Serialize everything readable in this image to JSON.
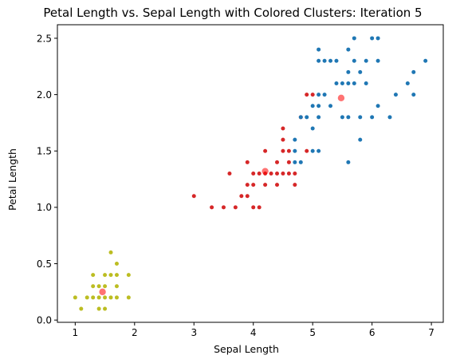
{
  "chart_data": {
    "type": "scatter",
    "title": "Petal Length vs. Sepal Length with Colored Clusters: Iteration 5",
    "xlabel": "Sepal Length",
    "ylabel": "Petal Length",
    "xlim": [
      0.7,
      7.2
    ],
    "ylim": [
      -0.02,
      2.62
    ],
    "xticks": [
      1,
      2,
      3,
      4,
      5,
      6,
      7
    ],
    "yticks": [
      0.0,
      0.5,
      1.0,
      1.5,
      2.0,
      2.5
    ],
    "xtick_labels": [
      "1",
      "2",
      "3",
      "4",
      "5",
      "6",
      "7"
    ],
    "ytick_labels": [
      "0.0",
      "0.5",
      "1.0",
      "1.5",
      "2.0",
      "2.5"
    ],
    "grid": false,
    "series": [
      {
        "color": "#bcbd22",
        "points": [
          [
            1.0,
            0.2
          ],
          [
            1.1,
            0.1
          ],
          [
            1.2,
            0.2
          ],
          [
            1.3,
            0.2
          ],
          [
            1.3,
            0.3
          ],
          [
            1.3,
            0.4
          ],
          [
            1.4,
            0.1
          ],
          [
            1.4,
            0.2
          ],
          [
            1.4,
            0.3
          ],
          [
            1.5,
            0.1
          ],
          [
            1.5,
            0.2
          ],
          [
            1.5,
            0.3
          ],
          [
            1.5,
            0.4
          ],
          [
            1.6,
            0.2
          ],
          [
            1.6,
            0.4
          ],
          [
            1.6,
            0.6
          ],
          [
            1.7,
            0.2
          ],
          [
            1.7,
            0.3
          ],
          [
            1.7,
            0.4
          ],
          [
            1.7,
            0.5
          ],
          [
            1.9,
            0.2
          ],
          [
            1.9,
            0.4
          ]
        ]
      },
      {
        "color": "#d62728",
        "points": [
          [
            3.0,
            1.1
          ],
          [
            3.3,
            1.0
          ],
          [
            3.5,
            1.0
          ],
          [
            3.6,
            1.3
          ],
          [
            3.7,
            1.0
          ],
          [
            3.8,
            1.1
          ],
          [
            3.9,
            1.1
          ],
          [
            3.9,
            1.2
          ],
          [
            3.9,
            1.4
          ],
          [
            4.0,
            1.0
          ],
          [
            4.0,
            1.2
          ],
          [
            4.0,
            1.3
          ],
          [
            4.1,
            1.0
          ],
          [
            4.1,
            1.3
          ],
          [
            4.2,
            1.2
          ],
          [
            4.2,
            1.3
          ],
          [
            4.2,
            1.5
          ],
          [
            4.3,
            1.3
          ],
          [
            4.4,
            1.2
          ],
          [
            4.4,
            1.3
          ],
          [
            4.4,
            1.4
          ],
          [
            4.5,
            1.3
          ],
          [
            4.5,
            1.5
          ],
          [
            4.5,
            1.6
          ],
          [
            4.5,
            1.7
          ],
          [
            4.6,
            1.3
          ],
          [
            4.6,
            1.4
          ],
          [
            4.6,
            1.5
          ],
          [
            4.7,
            1.2
          ],
          [
            4.7,
            1.3
          ],
          [
            4.8,
            1.8
          ],
          [
            4.9,
            1.5
          ],
          [
            4.9,
            2.0
          ],
          [
            5.0,
            2.0
          ]
        ]
      },
      {
        "color": "#1f77b4",
        "points": [
          [
            4.7,
            1.4
          ],
          [
            4.7,
            1.5
          ],
          [
            4.7,
            1.6
          ],
          [
            4.8,
            1.4
          ],
          [
            4.8,
            1.8
          ],
          [
            4.9,
            1.8
          ],
          [
            5.0,
            1.5
          ],
          [
            5.0,
            1.7
          ],
          [
            5.0,
            1.9
          ],
          [
            5.1,
            1.5
          ],
          [
            5.1,
            1.8
          ],
          [
            5.1,
            1.9
          ],
          [
            5.1,
            2.0
          ],
          [
            5.1,
            2.3
          ],
          [
            5.1,
            2.4
          ],
          [
            5.2,
            2.0
          ],
          [
            5.2,
            2.3
          ],
          [
            5.3,
            1.9
          ],
          [
            5.3,
            2.3
          ],
          [
            5.4,
            2.1
          ],
          [
            5.4,
            2.3
          ],
          [
            5.5,
            1.8
          ],
          [
            5.5,
            2.1
          ],
          [
            5.6,
            1.4
          ],
          [
            5.6,
            1.8
          ],
          [
            5.6,
            2.1
          ],
          [
            5.6,
            2.2
          ],
          [
            5.6,
            2.4
          ],
          [
            5.7,
            2.1
          ],
          [
            5.7,
            2.3
          ],
          [
            5.7,
            2.5
          ],
          [
            5.8,
            1.6
          ],
          [
            5.8,
            1.8
          ],
          [
            5.8,
            2.2
          ],
          [
            5.9,
            2.1
          ],
          [
            5.9,
            2.3
          ],
          [
            6.0,
            1.8
          ],
          [
            6.0,
            2.5
          ],
          [
            6.1,
            1.9
          ],
          [
            6.1,
            2.3
          ],
          [
            6.1,
            2.5
          ],
          [
            6.3,
            1.8
          ],
          [
            6.4,
            2.0
          ],
          [
            6.6,
            2.1
          ],
          [
            6.7,
            2.0
          ],
          [
            6.7,
            2.2
          ],
          [
            6.9,
            2.3
          ]
        ]
      }
    ],
    "centroids": {
      "color": "#ff0000",
      "points": [
        [
          1.46,
          0.25
        ],
        [
          4.2,
          1.32
        ],
        [
          5.48,
          1.97
        ]
      ]
    }
  }
}
